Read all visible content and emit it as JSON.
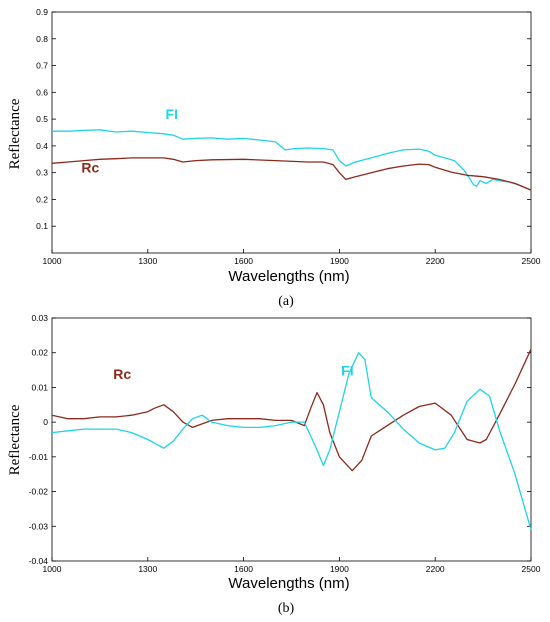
{
  "chart_data": [
    {
      "type": "line",
      "panel_label": "(a)",
      "xlabel": "Wavelengths (nm)",
      "ylabel": "Reflectance",
      "xlim": [
        1000,
        2500
      ],
      "ylim": [
        0,
        0.9
      ],
      "x_ticks": [
        "1000",
        "1300",
        "1600",
        "1900",
        "2200",
        "2500"
      ],
      "x_tick_values": [
        1000,
        1300,
        1600,
        1900,
        2200,
        2500
      ],
      "y_ticks": [
        "0.1",
        "0.2",
        "0.3",
        "0.4",
        "0.5",
        "0.6",
        "0.7",
        "0.8",
        "0.9"
      ],
      "y_tick_values": [
        0.1,
        0.2,
        0.3,
        0.4,
        0.5,
        0.6,
        0.7,
        0.8,
        0.9
      ],
      "grid": false,
      "series": [
        {
          "name": "FI",
          "color": "#1fd3ea",
          "label_at": [
            1375,
            0.5
          ],
          "x": [
            1000,
            1050,
            1100,
            1150,
            1200,
            1250,
            1300,
            1350,
            1380,
            1410,
            1450,
            1500,
            1550,
            1600,
            1650,
            1700,
            1730,
            1760,
            1800,
            1850,
            1880,
            1900,
            1920,
            1950,
            2000,
            2050,
            2100,
            2150,
            2180,
            2200,
            2230,
            2260,
            2290,
            2310,
            2320,
            2330,
            2340,
            2360,
            2380,
            2400,
            2430,
            2460,
            2500
          ],
          "y": [
            0.455,
            0.455,
            0.458,
            0.46,
            0.452,
            0.455,
            0.45,
            0.445,
            0.44,
            0.425,
            0.428,
            0.43,
            0.425,
            0.428,
            0.422,
            0.415,
            0.385,
            0.39,
            0.392,
            0.39,
            0.385,
            0.345,
            0.325,
            0.34,
            0.355,
            0.372,
            0.385,
            0.388,
            0.38,
            0.365,
            0.355,
            0.345,
            0.31,
            0.275,
            0.255,
            0.25,
            0.27,
            0.26,
            0.275,
            0.27,
            0.265,
            0.255,
            0.235
          ]
        },
        {
          "name": "Rc",
          "color": "#8b2a1c",
          "label_at": [
            1120,
            0.3
          ],
          "x": [
            1000,
            1050,
            1100,
            1150,
            1200,
            1250,
            1300,
            1350,
            1380,
            1410,
            1450,
            1500,
            1600,
            1700,
            1800,
            1850,
            1880,
            1900,
            1920,
            1950,
            2000,
            2050,
            2100,
            2150,
            2180,
            2200,
            2250,
            2300,
            2350,
            2400,
            2450,
            2500
          ],
          "y": [
            0.335,
            0.34,
            0.345,
            0.35,
            0.352,
            0.355,
            0.355,
            0.355,
            0.35,
            0.34,
            0.345,
            0.348,
            0.35,
            0.345,
            0.34,
            0.34,
            0.33,
            0.3,
            0.275,
            0.285,
            0.3,
            0.315,
            0.325,
            0.332,
            0.33,
            0.32,
            0.302,
            0.29,
            0.285,
            0.275,
            0.26,
            0.235
          ]
        }
      ]
    },
    {
      "type": "line",
      "panel_label": "(b)",
      "xlabel": "Wavelengths (nm)",
      "ylabel": "Reflectance",
      "xlim": [
        1000,
        2500
      ],
      "ylim": [
        -0.04,
        0.03
      ],
      "x_ticks": [
        "1000",
        "1300",
        "1600",
        "1900",
        "2200",
        "2500"
      ],
      "x_tick_values": [
        1000,
        1300,
        1600,
        1900,
        2200,
        2500
      ],
      "y_ticks": [
        "0.03",
        "0.02",
        "0.01",
        "0",
        "-0.01",
        "-0.02",
        "-0.03",
        "-0.04"
      ],
      "y_tick_values": [
        0.03,
        0.02,
        0.01,
        0,
        -0.01,
        -0.02,
        -0.03,
        -0.04
      ],
      "grid": false,
      "series": [
        {
          "name": "Rc",
          "color": "#8b2a1c",
          "label_at": [
            1220,
            0.0125
          ],
          "x": [
            1000,
            1050,
            1100,
            1150,
            1200,
            1250,
            1300,
            1320,
            1350,
            1380,
            1410,
            1440,
            1470,
            1500,
            1550,
            1600,
            1650,
            1700,
            1750,
            1790,
            1810,
            1830,
            1850,
            1870,
            1900,
            1940,
            1970,
            2000,
            2050,
            2100,
            2150,
            2200,
            2250,
            2300,
            2340,
            2360,
            2400,
            2450,
            2500
          ],
          "y": [
            0.002,
            0.001,
            0.001,
            0.0015,
            0.0015,
            0.002,
            0.003,
            0.004,
            0.005,
            0.003,
            0.0,
            -0.0015,
            -0.0005,
            0.0005,
            0.001,
            0.001,
            0.001,
            0.0005,
            0.0005,
            -0.001,
            0.004,
            0.0085,
            0.005,
            -0.003,
            -0.01,
            -0.014,
            -0.011,
            -0.004,
            -0.001,
            0.002,
            0.0045,
            0.0055,
            0.002,
            -0.005,
            -0.006,
            -0.005,
            0.002,
            0.011,
            0.021
          ]
        },
        {
          "name": "FI",
          "color": "#1fd3ea",
          "label_at": [
            1925,
            0.0135
          ],
          "x": [
            1000,
            1050,
            1100,
            1150,
            1200,
            1250,
            1300,
            1330,
            1350,
            1380,
            1410,
            1440,
            1470,
            1500,
            1550,
            1600,
            1650,
            1700,
            1750,
            1790,
            1810,
            1830,
            1850,
            1870,
            1900,
            1930,
            1960,
            1980,
            2000,
            2050,
            2100,
            2150,
            2200,
            2230,
            2260,
            2300,
            2340,
            2370,
            2400,
            2450,
            2500
          ],
          "y": [
            -0.003,
            -0.0025,
            -0.002,
            -0.002,
            -0.002,
            -0.003,
            -0.005,
            -0.0065,
            -0.0075,
            -0.0055,
            -0.002,
            0.001,
            0.002,
            0.0,
            -0.001,
            -0.0015,
            -0.0015,
            -0.001,
            0.0,
            0.0,
            -0.004,
            -0.008,
            -0.0125,
            -0.008,
            0.003,
            0.014,
            0.02,
            0.018,
            0.007,
            0.003,
            -0.002,
            -0.006,
            -0.008,
            -0.0075,
            -0.003,
            0.006,
            0.0095,
            0.0075,
            -0.002,
            -0.015,
            -0.031
          ]
        }
      ]
    }
  ]
}
